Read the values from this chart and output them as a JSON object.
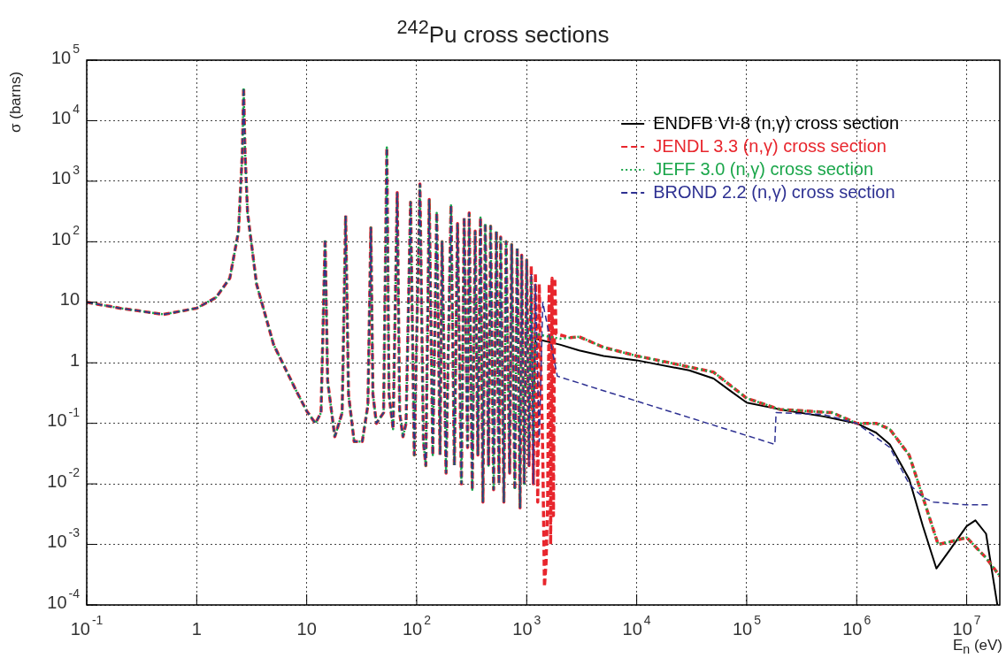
{
  "chart_data": {
    "type": "line",
    "title": "$^{242}$Pu cross sections",
    "xlabel": "E$_{n}$ (eV)",
    "ylabel": "σ (barns)",
    "log": "xy",
    "grid": true,
    "legend": "top right",
    "xlim": [
      0.1,
      20000000
    ],
    "ylim": [
      0.0001,
      100000
    ],
    "xticks": [
      {
        "value": 0.1,
        "label": "10$^{-1}$"
      },
      1,
      10,
      {
        "value": 100,
        "label": "10$^{2}$"
      },
      {
        "value": 1000,
        "label": "10$^{3}$"
      },
      {
        "value": 10000,
        "label": "10$^{4}$"
      },
      {
        "value": 100000,
        "label": "10$^{5}$"
      },
      {
        "value": 1000000,
        "label": "10$^{6}$"
      },
      {
        "value": 10000000,
        "label": "10$^{7}$"
      }
    ],
    "yticks": [
      {
        "value": 0.0001,
        "label": "10$^{-4}$"
      },
      {
        "value": 0.001,
        "label": "10$^{-3}$"
      },
      {
        "value": 0.01,
        "label": "10$^{-2}$"
      },
      {
        "value": 0.1,
        "label": "10$^{-1}$"
      },
      1,
      10,
      {
        "value": 100,
        "label": "10$^{2}$"
      },
      {
        "value": 1000,
        "label": "10$^{3}$"
      },
      {
        "value": 10000,
        "label": "10$^{4}$"
      },
      {
        "value": 100000,
        "label": "10$^{5}$"
      }
    ],
    "series": [
      {
        "name": "ENDFB VI-8 (n,γ) cross section",
        "color": "#000000",
        "line_style": "solid",
        "x": [
          1150,
          1200,
          2000,
          3000,
          5000,
          10000,
          30000,
          50000,
          70000,
          100000,
          200000,
          500000,
          1000000,
          1500000,
          2000000,
          3000000,
          4000000,
          5300000,
          7000000,
          10000000,
          12000000,
          15000000,
          19000000
        ],
        "values": [
          0.3,
          2.5,
          2,
          1.6,
          1.3,
          1.1,
          0.75,
          0.55,
          0.35,
          0.22,
          0.17,
          0.13,
          0.1,
          0.07,
          0.045,
          0.012,
          0.002,
          0.0004,
          0.0008,
          0.002,
          0.0025,
          0.0015,
          0.0001
        ]
      },
      {
        "name": "JENDL 3.3 (n,γ) cross section",
        "color": "#e8262d",
        "line_style": "dashed",
        "x": [
          0.1,
          0.2,
          0.5,
          1,
          1.5,
          2,
          2.4,
          2.6,
          2.67,
          2.75,
          2.9,
          3.5,
          5,
          8,
          10,
          12,
          13.5,
          14.7,
          15.5,
          18,
          21,
          22.6,
          24,
          27,
          32,
          36,
          38.3,
          40,
          43,
          50,
          53.5,
          56,
          61,
          66.5,
          70,
          75,
          80,
          88,
          95,
          107,
          115,
          121,
          130,
          140,
          152,
          163,
          170,
          185,
          205,
          220,
          235,
          255,
          270,
          290,
          300,
          320,
          340,
          360,
          380,
          400,
          420,
          450,
          470,
          500,
          530,
          560,
          580,
          620,
          650,
          700,
          730,
          780,
          820,
          870,
          900,
          950,
          1000,
          1050,
          1100,
          1150,
          1200,
          1260,
          1300,
          1400,
          1450,
          1500,
          1550,
          1600,
          1650,
          1700,
          1750,
          1800,
          1850,
          2500,
          3000,
          5000,
          10000,
          20000,
          50000,
          100000,
          200000,
          600000,
          1000000,
          1500000,
          2000000,
          3000000,
          4000000,
          5500000,
          7000000,
          10000000,
          15000000,
          20000000
        ],
        "values": [
          10,
          8,
          6.3,
          8,
          12,
          25,
          150,
          3000,
          35000,
          3000,
          300,
          20,
          2,
          0.35,
          0.16,
          0.1,
          0.15,
          110,
          0.5,
          0.06,
          0.15,
          270,
          0.3,
          0.05,
          0.05,
          0.2,
          170,
          0.3,
          0.1,
          0.15,
          3600,
          0.3,
          0.08,
          650,
          0.15,
          0.06,
          0.1,
          450,
          0.03,
          900,
          0.05,
          0.02,
          500,
          0.03,
          300,
          0.03,
          100,
          0.015,
          400,
          0.02,
          200,
          0.01,
          250,
          0.04,
          300,
          0.008,
          150,
          0.03,
          250,
          0.005,
          200,
          0.02,
          180,
          0.008,
          150,
          0.01,
          120,
          0.005,
          100,
          0.015,
          90,
          0.008,
          80,
          0.004,
          60,
          0.01,
          50,
          0.02,
          40,
          0.01,
          30,
          0.005,
          20,
          0.03,
          0.0002,
          0.0005,
          0.005,
          20,
          0.001,
          25,
          0.003,
          25,
          3,
          2.6,
          2.7,
          1.8,
          1.3,
          1,
          0.7,
          0.26,
          0.17,
          0.15,
          0.1,
          0.1,
          0.08,
          0.03,
          0.006,
          0.001,
          0.0011,
          0.0013,
          0.0006,
          0.0003
        ]
      },
      {
        "name": "JEFF 3.0 (n,γ) cross section",
        "color": "#1aa64a",
        "line_style": "dotted",
        "x": [
          0.1,
          0.2,
          0.5,
          1,
          1.5,
          2,
          2.4,
          2.6,
          2.67,
          2.75,
          2.9,
          3.5,
          5,
          8,
          10,
          12,
          13.5,
          14.7,
          15.5,
          18,
          21,
          22.6,
          24,
          27,
          32,
          36,
          38.3,
          40,
          43,
          50,
          53.5,
          56,
          61,
          66.5,
          70,
          75,
          80,
          88,
          95,
          107,
          115,
          121,
          130,
          140,
          152,
          163,
          170,
          185,
          205,
          220,
          235,
          255,
          270,
          290,
          300,
          320,
          340,
          360,
          380,
          400,
          420,
          450,
          470,
          500,
          530,
          560,
          580,
          620,
          650,
          700,
          730,
          780,
          820,
          870,
          900,
          950,
          1000,
          1050,
          1100,
          1150,
          1200,
          2000,
          3000,
          5000,
          10000,
          20000,
          50000,
          100000,
          200000,
          600000,
          1000000,
          1500000,
          2000000,
          3000000,
          4000000,
          5500000,
          7000000,
          10000000,
          15000000,
          20000000
        ],
        "values": [
          10,
          8,
          6.3,
          8,
          12,
          25,
          150,
          3000,
          35000,
          3000,
          300,
          20,
          2,
          0.35,
          0.16,
          0.1,
          0.15,
          110,
          0.5,
          0.06,
          0.15,
          270,
          0.3,
          0.05,
          0.05,
          0.2,
          170,
          0.3,
          0.1,
          0.15,
          3600,
          0.3,
          0.08,
          650,
          0.15,
          0.06,
          0.1,
          450,
          0.03,
          900,
          0.05,
          0.02,
          500,
          0.03,
          300,
          0.03,
          100,
          0.015,
          400,
          0.02,
          200,
          0.01,
          250,
          0.04,
          300,
          0.008,
          150,
          0.03,
          250,
          0.005,
          200,
          0.02,
          180,
          0.008,
          150,
          0.01,
          120,
          0.005,
          100,
          0.015,
          90,
          0.008,
          80,
          0.004,
          60,
          0.01,
          50,
          0.03,
          25,
          0.05,
          3,
          2.5,
          2.7,
          1.8,
          1.3,
          1,
          0.7,
          0.26,
          0.17,
          0.15,
          0.1,
          0.1,
          0.08,
          0.03,
          0.006,
          0.001,
          0.0011,
          0.0013,
          0.0006,
          0.0003
        ]
      },
      {
        "name": "BROND 2.2 (n,γ) cross section",
        "color": "#2e3192",
        "line_style": "dashed",
        "x": [
          0.1,
          0.2,
          0.5,
          1,
          1.5,
          2,
          2.4,
          2.6,
          2.67,
          2.75,
          2.9,
          3.5,
          5,
          8,
          10,
          12,
          13.5,
          14.7,
          15.5,
          18,
          21,
          22.6,
          24,
          27,
          32,
          36,
          38.3,
          40,
          43,
          50,
          53.5,
          56,
          61,
          66.5,
          70,
          75,
          80,
          88,
          95,
          107,
          115,
          121,
          130,
          140,
          152,
          163,
          170,
          185,
          205,
          220,
          235,
          255,
          270,
          290,
          300,
          320,
          340,
          360,
          380,
          400,
          420,
          450,
          470,
          500,
          530,
          560,
          580,
          620,
          650,
          700,
          730,
          780,
          820,
          870,
          900,
          950,
          1000,
          1050,
          1100,
          1150,
          1200,
          1300,
          1400,
          1900,
          180000,
          185000,
          500000,
          1000000,
          2000000,
          3000000,
          4000000,
          5000000,
          10000000,
          16000000
        ],
        "values": [
          10,
          8,
          6.3,
          8,
          12,
          25,
          150,
          3000,
          35000,
          3000,
          300,
          20,
          2,
          0.35,
          0.16,
          0.1,
          0.15,
          110,
          0.5,
          0.06,
          0.15,
          270,
          0.3,
          0.05,
          0.05,
          0.2,
          170,
          0.3,
          0.1,
          0.15,
          3600,
          0.3,
          0.08,
          650,
          0.15,
          0.06,
          0.1,
          450,
          0.03,
          900,
          0.05,
          0.02,
          500,
          0.03,
          300,
          0.03,
          100,
          0.015,
          400,
          0.02,
          200,
          0.01,
          250,
          0.04,
          300,
          0.008,
          150,
          0.03,
          250,
          0.005,
          200,
          0.02,
          180,
          0.008,
          150,
          0.01,
          120,
          0.005,
          100,
          0.015,
          90,
          0.008,
          80,
          0.004,
          60,
          0.01,
          50,
          0.02,
          30,
          0.01,
          20,
          0.05,
          10,
          0.6,
          0.045,
          0.15,
          0.14,
          0.1,
          0.04,
          0.01,
          0.006,
          0.005,
          0.0045,
          0.0045
        ]
      }
    ]
  }
}
